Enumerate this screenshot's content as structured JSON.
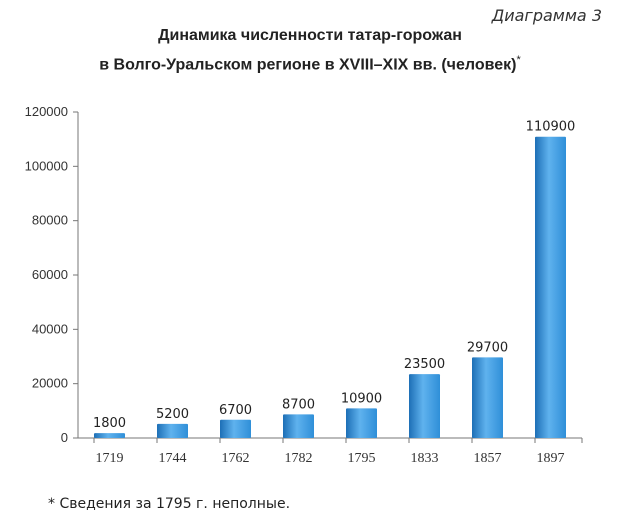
{
  "page": {
    "tag": "Диаграмма 3",
    "title_line1": "Динамика численности татар-горожан",
    "title_line2": "в Волго-Уральском регионе в XVIII–XIX вв. (человек)",
    "title_mark": "*",
    "footnote": "* Сведения за 1795 г. неполные."
  },
  "chart_data": {
    "type": "bar",
    "title": "Динамика численности татар-горожан в Волго-Уральском регионе в XVIII–XIX вв. (человек)",
    "categories": [
      "1719",
      "1744",
      "1762",
      "1782",
      "1795",
      "1833",
      "1857",
      "1897"
    ],
    "values": [
      1800,
      5200,
      6700,
      8700,
      10900,
      23500,
      29700,
      110900
    ],
    "value_labels": [
      "1800",
      "5200",
      "6700",
      "8700",
      "10900",
      "23500",
      "29700",
      "110900"
    ],
    "y_ticks": [
      "0",
      "20000",
      "40000",
      "60000",
      "80000",
      "100000",
      "120000"
    ],
    "ylim": [
      0,
      120000
    ],
    "xlabel": "",
    "ylabel": "",
    "grid": false,
    "bar_color": "#2f8fd8",
    "bar_color_light": "#5fb2ee",
    "bar_color_dark": "#1d6fb6"
  }
}
